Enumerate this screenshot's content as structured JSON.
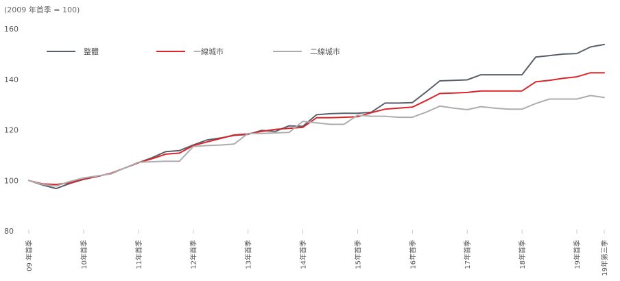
{
  "chart_data": {
    "type": "line",
    "unit_note": "(2009 年首季  = 100)",
    "title": "",
    "xlabel": "",
    "ylabel": "",
    "ylim": [
      80,
      160
    ],
    "yticks": [
      80,
      100,
      120,
      140,
      160
    ],
    "grid": false,
    "legend": "top-left",
    "x_labels": [
      "09 年首季",
      "10年首季",
      "11年首季",
      "12年首季",
      "13年首季",
      "14年首季",
      "15年首季",
      "16年首季",
      "17年首季",
      "18年首季",
      "19年首季",
      "19年第三季"
    ],
    "x_label_quarters": [
      0,
      4,
      8,
      12,
      16,
      20,
      24,
      28,
      32,
      36,
      40,
      42
    ],
    "x_quarters": [
      0,
      1,
      2,
      3,
      4,
      5,
      6,
      7,
      8,
      9,
      10,
      11,
      12,
      13,
      14,
      15,
      16,
      17,
      18,
      19,
      20,
      21,
      22,
      23,
      24,
      25,
      26,
      27,
      28,
      29,
      30,
      31,
      32,
      33,
      34,
      35,
      36,
      37,
      38,
      39,
      40,
      41,
      42
    ],
    "series": [
      {
        "name": "整體",
        "color": "#5a6069",
        "values": [
          100,
          98.2,
          96.8,
          98.8,
          100.4,
          101.6,
          102.8,
          104.9,
          107.0,
          109.0,
          111.4,
          111.8,
          114.0,
          116.0,
          116.8,
          117.8,
          118.2,
          119.8,
          119.4,
          121.6,
          121.4,
          126.0,
          126.4,
          126.6,
          126.6,
          127.0,
          130.6,
          130.6,
          130.8,
          135.0,
          139.4,
          139.6,
          139.8,
          141.8,
          141.8,
          141.8,
          141.8,
          148.8,
          149.4,
          150.0,
          150.2,
          152.8,
          153.8
        ]
      },
      {
        "name": "一線城市",
        "color": "#d7262c",
        "values": [
          100,
          98.6,
          98.4,
          99.0,
          100.6,
          101.6,
          102.8,
          104.9,
          107.0,
          108.6,
          110.4,
          110.8,
          113.8,
          115.2,
          116.6,
          118.0,
          118.4,
          119.4,
          120.2,
          120.6,
          121.0,
          124.8,
          124.8,
          125.0,
          125.2,
          126.8,
          128.2,
          128.6,
          129.0,
          131.6,
          134.4,
          134.6,
          134.8,
          135.4,
          135.4,
          135.4,
          135.4,
          139.0,
          139.6,
          140.4,
          141.0,
          142.6,
          142.6
        ]
      },
      {
        "name": "二線城市",
        "color": "#adadb0",
        "values": [
          100,
          98.4,
          97.8,
          99.6,
          101.0,
          101.8,
          102.6,
          104.9,
          107.2,
          107.4,
          107.6,
          107.6,
          113.4,
          113.8,
          114.0,
          114.4,
          118.6,
          118.6,
          118.8,
          119.0,
          123.4,
          122.8,
          122.2,
          122.2,
          125.8,
          125.4,
          125.4,
          125.0,
          125.0,
          127.0,
          129.4,
          128.6,
          128.0,
          129.2,
          128.6,
          128.2,
          128.2,
          130.4,
          132.2,
          132.2,
          132.2,
          133.6,
          132.8
        ]
      }
    ]
  }
}
